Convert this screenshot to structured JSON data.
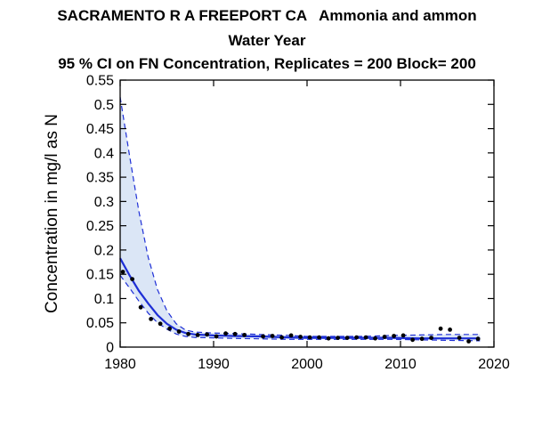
{
  "chart_data": {
    "type": "line",
    "title_lines": [
      "SACRAMENTO R A FREEPORT CA   Ammonia and ammon",
      "Water Year",
      "95 % CI on FN Concentration, Replicates = 200 Block= 200"
    ],
    "xlabel": "",
    "ylabel": "Concentration in mg/l as N",
    "xlim": [
      1980,
      2020
    ],
    "ylim": [
      0,
      0.55
    ],
    "xticks": [
      1980,
      1990,
      2000,
      2010,
      2020
    ],
    "yticks": [
      0,
      0.05,
      0.1,
      0.15,
      0.2,
      0.25,
      0.3,
      0.35,
      0.4,
      0.45,
      0.5,
      0.55
    ],
    "ytick_labels": [
      "0",
      "0.05",
      "0.1",
      "0.15",
      "0.2",
      "0.25",
      "0.3",
      "0.35",
      "0.4",
      "0.45",
      "0.5",
      "0.55"
    ],
    "series": [
      {
        "kind": "trend",
        "x": [
          1980,
          1981,
          1982,
          1983,
          1984,
          1985,
          1986,
          1987,
          1988,
          1990,
          1992,
          1995,
          1998,
          2000,
          2003,
          2006,
          2009,
          2012,
          2015,
          2018.5
        ],
        "values": [
          0.183,
          0.148,
          0.116,
          0.09,
          0.066,
          0.048,
          0.036,
          0.029,
          0.026,
          0.024,
          0.023,
          0.022,
          0.02,
          0.019,
          0.019,
          0.019,
          0.019,
          0.018,
          0.018,
          0.018
        ]
      },
      {
        "kind": "ci_upper",
        "x": [
          1980,
          1981,
          1982,
          1983,
          1984,
          1985,
          1986,
          1987,
          1988,
          1990,
          1992,
          1995,
          1998,
          2000,
          2003,
          2006,
          2009,
          2012,
          2015,
          2018.5
        ],
        "values": [
          0.515,
          0.395,
          0.28,
          0.185,
          0.118,
          0.075,
          0.048,
          0.035,
          0.031,
          0.029,
          0.028,
          0.026,
          0.024,
          0.022,
          0.022,
          0.022,
          0.024,
          0.025,
          0.026,
          0.026
        ]
      },
      {
        "kind": "ci_lower",
        "x": [
          1980,
          1981,
          1982,
          1983,
          1984,
          1985,
          1986,
          1987,
          1988,
          1990,
          1992,
          1995,
          1998,
          2000,
          2003,
          2006,
          2009,
          2012,
          2015,
          2018.5
        ],
        "values": [
          0.148,
          0.122,
          0.095,
          0.07,
          0.05,
          0.037,
          0.027,
          0.022,
          0.02,
          0.019,
          0.018,
          0.017,
          0.016,
          0.016,
          0.016,
          0.016,
          0.016,
          0.015,
          0.014,
          0.013
        ]
      },
      {
        "kind": "observations",
        "x": [
          1980.3,
          1981.3,
          1982.2,
          1983.3,
          1984.3,
          1985.3,
          1986.3,
          1987.3,
          1988.3,
          1989.3,
          1990.3,
          1991.3,
          1992.3,
          1993.3,
          1995.3,
          1996.3,
          1997.3,
          1998.3,
          1999.3,
          2000.3,
          2001.3,
          2002.3,
          2003.3,
          2004.3,
          2005.3,
          2006.3,
          2007.3,
          2008.3,
          2009.3,
          2010.3,
          2011.3,
          2012.3,
          2013.3,
          2014.3,
          2015.3,
          2016.3,
          2017.3,
          2018.3
        ],
        "values": [
          0.155,
          0.14,
          0.082,
          0.058,
          0.048,
          0.038,
          0.032,
          0.027,
          0.025,
          0.026,
          0.022,
          0.028,
          0.027,
          0.025,
          0.022,
          0.023,
          0.02,
          0.024,
          0.021,
          0.02,
          0.02,
          0.018,
          0.019,
          0.019,
          0.02,
          0.02,
          0.018,
          0.021,
          0.023,
          0.024,
          0.015,
          0.017,
          0.019,
          0.038,
          0.036,
          0.019,
          0.012,
          0.017
        ]
      }
    ],
    "colors": {
      "trend": "#1e2fd6",
      "ci_line": "#1e2fd6",
      "ci_fill": "#dbe6f6",
      "points": "#000000",
      "axes": "#000000"
    },
    "grid": false,
    "legend": "none"
  }
}
